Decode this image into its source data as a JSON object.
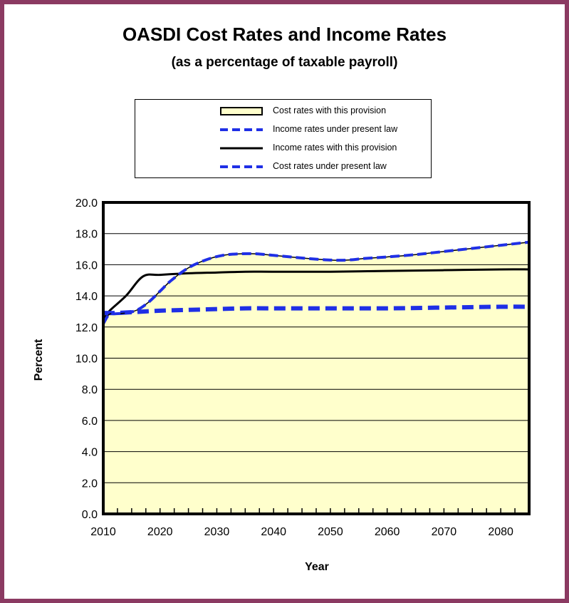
{
  "chart_data": {
    "type": "line",
    "title": "OASDI Cost Rates and Income Rates",
    "subtitle": "(as a percentage of taxable payroll)",
    "xlabel": "Year",
    "ylabel": "Percent",
    "xlim": [
      2010,
      2085
    ],
    "ylim": [
      0,
      20
    ],
    "x_ticks": [
      "2010",
      "2020",
      "2030",
      "2040",
      "2050",
      "2060",
      "2070",
      "2080"
    ],
    "y_ticks": [
      "0.0",
      "2.0",
      "4.0",
      "6.0",
      "8.0",
      "10.0",
      "12.0",
      "14.0",
      "16.0",
      "18.0",
      "20.0"
    ],
    "grid": "horizontal",
    "legend_position": "top-center",
    "colors": {
      "fill": "#ffffcc",
      "income_with": "#000000",
      "present_law": "#1f2fe6",
      "frame": "#8b3a62"
    },
    "series": [
      {
        "name": "Cost rates with this provision",
        "style": "area",
        "x": [
          2010,
          2011,
          2012,
          2014,
          2016,
          2018,
          2020,
          2022,
          2025,
          2028,
          2031,
          2034,
          2037,
          2040,
          2043,
          2046,
          2050,
          2053,
          2056,
          2060,
          2065,
          2070,
          2075,
          2080,
          2085
        ],
        "y": [
          12.2,
          12.8,
          12.85,
          12.9,
          13.1,
          13.6,
          14.3,
          15.0,
          15.8,
          16.3,
          16.6,
          16.7,
          16.7,
          16.6,
          16.5,
          16.4,
          16.3,
          16.3,
          16.4,
          16.5,
          16.65,
          16.85,
          17.05,
          17.25,
          17.45
        ]
      },
      {
        "name": "Income rates under present law",
        "style": "dashed-blue",
        "x": [
          2010,
          2012,
          2015,
          2020,
          2025,
          2030,
          2035,
          2040,
          2050,
          2060,
          2070,
          2080,
          2085
        ],
        "y": [
          12.9,
          12.9,
          12.95,
          13.05,
          13.1,
          13.15,
          13.2,
          13.2,
          13.2,
          13.2,
          13.25,
          13.3,
          13.3
        ]
      },
      {
        "name": "Income rates with this provision",
        "style": "solid-black",
        "x": [
          2010,
          2011,
          2014,
          2017,
          2020,
          2025,
          2030,
          2035,
          2040,
          2050,
          2060,
          2070,
          2080,
          2085
        ],
        "y": [
          12.4,
          13.0,
          14.0,
          15.25,
          15.35,
          15.45,
          15.5,
          15.55,
          15.55,
          15.55,
          15.6,
          15.65,
          15.7,
          15.7
        ]
      },
      {
        "name": "Cost rates under present law",
        "style": "dashed-blue",
        "x": [
          2010,
          2011,
          2012,
          2014,
          2016,
          2018,
          2020,
          2022,
          2025,
          2028,
          2031,
          2034,
          2037,
          2040,
          2043,
          2046,
          2050,
          2053,
          2056,
          2060,
          2065,
          2070,
          2075,
          2080,
          2085
        ],
        "y": [
          12.2,
          12.8,
          12.85,
          12.9,
          13.1,
          13.6,
          14.3,
          15.0,
          15.8,
          16.3,
          16.6,
          16.7,
          16.7,
          16.6,
          16.5,
          16.4,
          16.3,
          16.3,
          16.4,
          16.5,
          16.65,
          16.85,
          17.05,
          17.25,
          17.45
        ]
      }
    ]
  }
}
